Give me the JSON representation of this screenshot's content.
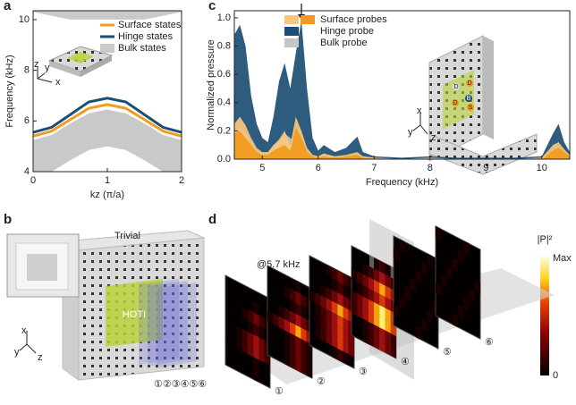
{
  "panel_labels": [
    "a",
    "b",
    "c",
    "d"
  ],
  "chart_data": [
    {
      "type": "line",
      "xlabel": "kz (π/a)",
      "ylabel": "Frequency (kHz)",
      "x": [
        0,
        0.25,
        0.5,
        0.75,
        1,
        1.25,
        1.5,
        1.75,
        2
      ],
      "xlim": [
        0,
        2
      ],
      "xticks": [
        0,
        1,
        2
      ],
      "ylim": [
        4,
        10.35
      ],
      "yticks": [
        4,
        6,
        8,
        10
      ],
      "legend": "upper right",
      "inset_axes": [
        "z",
        "y",
        "x"
      ],
      "series": [
        {
          "name": "Surface states",
          "color": "#f39a1e",
          "values": [
            5.4,
            5.6,
            6.05,
            6.5,
            6.65,
            6.5,
            6.05,
            5.6,
            5.4
          ]
        },
        {
          "name": "Hinge states",
          "color": "#1b4e74",
          "values": [
            5.55,
            5.75,
            6.25,
            6.75,
            6.9,
            6.75,
            6.25,
            5.75,
            5.55
          ]
        },
        {
          "name": "Bulk states",
          "color": "#c9c9c9",
          "bands": [
            {
              "lower": [
                4.0,
                4.0,
                4.45,
                4.85,
                5.0,
                4.85,
                4.45,
                4.0,
                4.0
              ],
              "upper": [
                5.25,
                5.45,
                5.9,
                6.3,
                6.45,
                6.3,
                5.9,
                5.45,
                5.25
              ]
            },
            {
              "lower": [
                10.3,
                10.15,
                10.0,
                10.0,
                10.0,
                10.0,
                10.0,
                10.15,
                10.3
              ],
              "upper": [
                10.35,
                10.35,
                10.35,
                10.35,
                10.35,
                10.35,
                10.35,
                10.35,
                10.35
              ]
            }
          ]
        }
      ]
    },
    {
      "type": "area",
      "xlabel": "Frequency (kHz)",
      "ylabel": "Normalized pressure",
      "x": [
        4.5,
        4.6,
        4.7,
        4.8,
        4.9,
        5.0,
        5.1,
        5.2,
        5.3,
        5.4,
        5.5,
        5.6,
        5.7,
        5.8,
        5.9,
        6.0,
        6.1,
        6.3,
        6.5,
        6.7,
        6.8,
        7.0,
        7.5,
        8.0,
        8.5,
        9.0,
        9.5,
        10.0,
        10.2,
        10.3,
        10.4,
        10.5
      ],
      "xlim": [
        4.5,
        10.5
      ],
      "xticks": [
        5,
        6,
        7,
        8,
        9,
        10
      ],
      "ylim": [
        0,
        1.05
      ],
      "yticks": [
        {
          "value": 0,
          "label": "0.0"
        },
        {
          "value": 0.2,
          "label": "0.2"
        },
        {
          "value": 0.4,
          "label": "0.4"
        },
        {
          "value": 0.6,
          "label": "0.6"
        },
        {
          "value": 0.8,
          "label": "0.8"
        },
        {
          "value": 1.0,
          "label": "1.0"
        }
      ],
      "legend": "upper center",
      "inset_axes": [
        "x",
        "y",
        "z"
      ],
      "inset_probes": [
        "D",
        "D",
        "D",
        "D",
        "B",
        "S"
      ],
      "series": [
        {
          "name": "Hinge probe",
          "color": "#1b4e74",
          "values": [
            0.88,
            0.95,
            0.8,
            0.45,
            0.25,
            0.15,
            0.12,
            0.3,
            0.55,
            0.68,
            0.5,
            0.75,
            0.98,
            0.5,
            0.15,
            0.06,
            0.1,
            0.05,
            0.08,
            0.16,
            0.05,
            0.02,
            0.01,
            0.02,
            0.01,
            0.01,
            0.01,
            0.02,
            0.18,
            0.25,
            0.12,
            0.05
          ]
        },
        {
          "name": "Bulk probe",
          "color": "#c6c6c6",
          "values": [
            0.2,
            0.22,
            0.18,
            0.1,
            0.05,
            0.04,
            0.04,
            0.1,
            0.12,
            0.18,
            0.15,
            0.1,
            0.08,
            0.05,
            0.02,
            0.02,
            0.03,
            0.02,
            0.02,
            0.03,
            0.02,
            0.01,
            0,
            0.01,
            0,
            0,
            0,
            0.01,
            0.05,
            0.07,
            0.05,
            0.02
          ]
        },
        {
          "name": "Surface probes",
          "color": "#f7c77c",
          "values": [
            0.25,
            0.3,
            0.24,
            0.15,
            0.08,
            0.05,
            0.05,
            0.1,
            0.14,
            0.2,
            0.1,
            0.3,
            0.2,
            0.08,
            0.03,
            0.02,
            0.04,
            0.02,
            0.03,
            0.05,
            0.02,
            0.01,
            0,
            0.01,
            0,
            0,
            0,
            0.01,
            0.1,
            0.12,
            0.07,
            0.03
          ]
        },
        {
          "name": "Surface probes",
          "color": "#f29a1d",
          "values": [
            0.18,
            0.2,
            0.15,
            0.1,
            0.05,
            0.03,
            0.03,
            0.06,
            0.08,
            0.1,
            0.06,
            0.22,
            0.15,
            0.05,
            0.02,
            0.01,
            0.02,
            0.01,
            0.02,
            0.03,
            0.01,
            0,
            0,
            0,
            0,
            0,
            0,
            0,
            0.06,
            0.08,
            0.05,
            0.02
          ]
        }
      ]
    }
  ],
  "panel_b": {
    "trivial": "Trivial",
    "hoti": "HOTI",
    "slices": "①②③④⑤⑥",
    "axes": [
      "x",
      "y",
      "z"
    ]
  },
  "panel_d": {
    "annotation": "@5.7 kHz",
    "colorbar_title": "|P|²",
    "colorbar_max": "Max",
    "colorbar_min": "0",
    "slices": [
      "①",
      "②",
      "③",
      "④",
      "⑤",
      "⑥"
    ]
  }
}
